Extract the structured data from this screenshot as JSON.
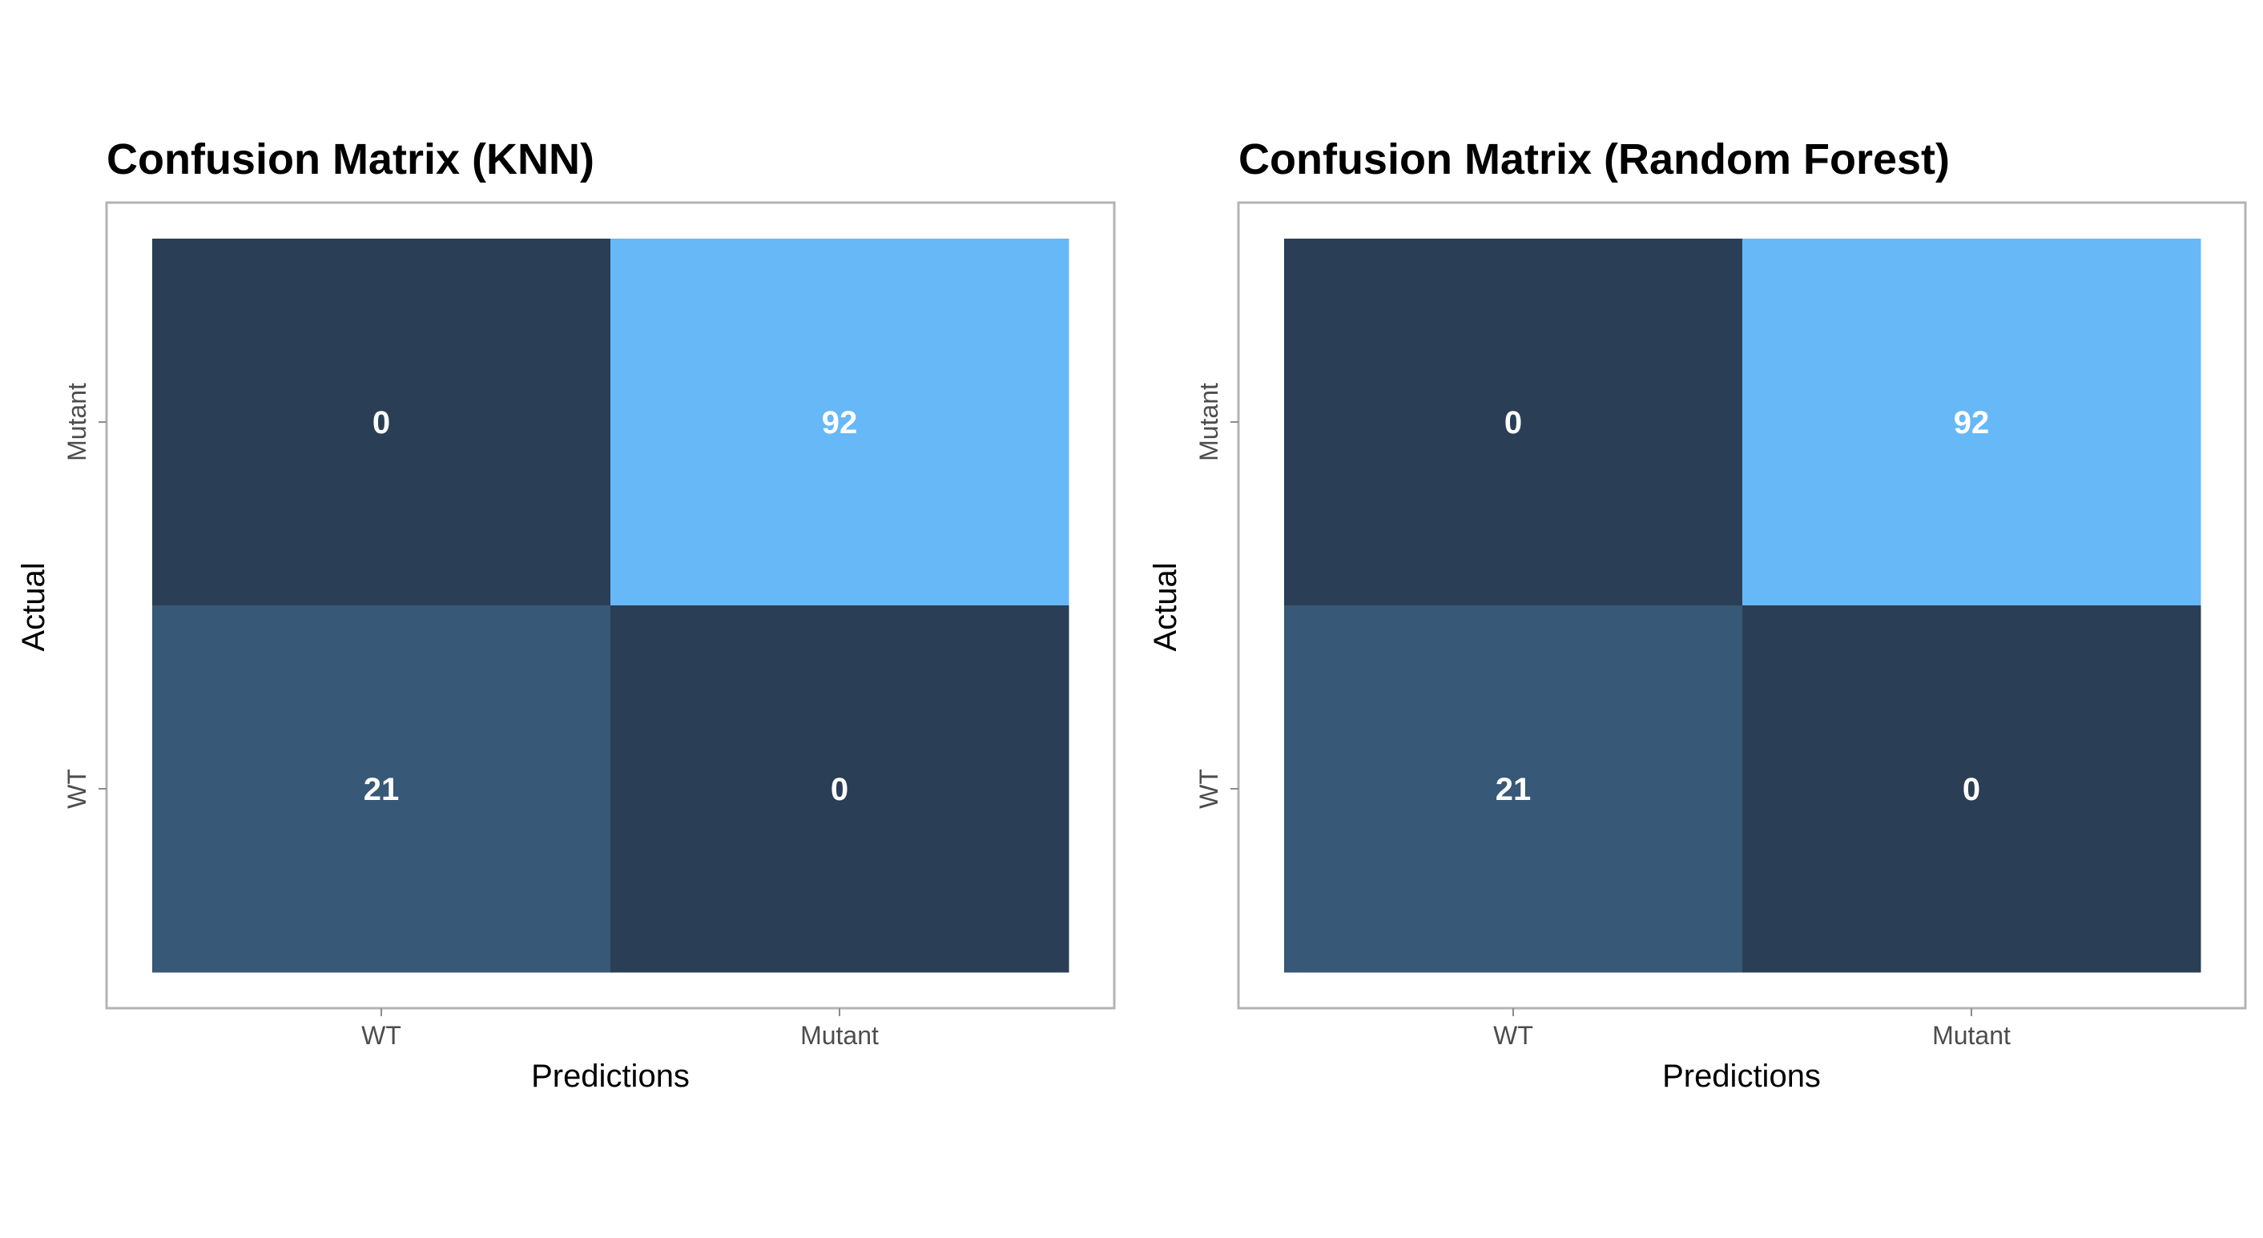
{
  "colors": {
    "background": "#ffffff",
    "panel_border": "#b3b3b3",
    "tick": "#8c8c8c",
    "tick_label": "#4d4d4d",
    "axis_title": "#000000",
    "cell_text": "#ffffff",
    "scale_low": "#2a3f55",
    "scale_mid": "#385a7a",
    "scale_high": "#67b8f6"
  },
  "chart_data": [
    {
      "type": "heatmap",
      "title": "Confusion Matrix (KNN)",
      "xlabel": "Predictions",
      "ylabel": "Actual",
      "x_categories": [
        "WT",
        "Mutant"
      ],
      "y_categories": [
        "Mutant",
        "WT"
      ],
      "cells": [
        {
          "actual": "Mutant",
          "predicted": "WT",
          "value": 0,
          "label": "0"
        },
        {
          "actual": "Mutant",
          "predicted": "Mutant",
          "value": 92,
          "label": "92"
        },
        {
          "actual": "WT",
          "predicted": "WT",
          "value": 21,
          "label": "21"
        },
        {
          "actual": "WT",
          "predicted": "Mutant",
          "value": 0,
          "label": "0"
        }
      ],
      "grid": false,
      "legend": "none"
    },
    {
      "type": "heatmap",
      "title": "Confusion Matrix (Random Forest)",
      "xlabel": "Predictions",
      "ylabel": "Actual",
      "x_categories": [
        "WT",
        "Mutant"
      ],
      "y_categories": [
        "Mutant",
        "WT"
      ],
      "cells": [
        {
          "actual": "Mutant",
          "predicted": "WT",
          "value": 0,
          "label": "0"
        },
        {
          "actual": "Mutant",
          "predicted": "Mutant",
          "value": 92,
          "label": "92"
        },
        {
          "actual": "WT",
          "predicted": "WT",
          "value": 21,
          "label": "21"
        },
        {
          "actual": "WT",
          "predicted": "Mutant",
          "value": 0,
          "label": "0"
        }
      ],
      "grid": false,
      "legend": "none"
    }
  ]
}
